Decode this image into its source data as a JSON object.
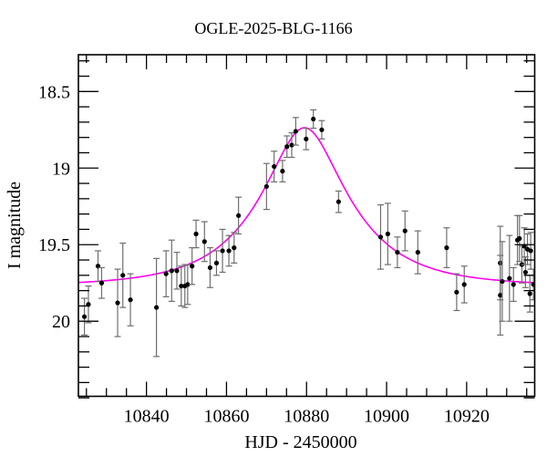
{
  "figure": {
    "title": "OGLE-2025-BLG-1166",
    "xlabel": "HJD - 2450000",
    "ylabel": "I magnitude"
  },
  "chart_data": {
    "type": "scatter",
    "title": "OGLE-2025-BLG-1166",
    "xlabel": "HJD - 2450000",
    "ylabel": "I magnitude",
    "xlim": [
      10823,
      10937
    ],
    "ylim": [
      18.26,
      20.49
    ],
    "y_axis_inverted": true,
    "grid": false,
    "legend": null,
    "x_major_ticks": [
      10840,
      10860,
      10880,
      10900,
      10920
    ],
    "x_minor_step": 5,
    "y_major_ticks": [
      18.5,
      19,
      19.5,
      20
    ],
    "y_minor_step": 0.1,
    "colors": {
      "points": "#000000",
      "error_bars": "#6e6e6e",
      "model_curve": "#ff00f0",
      "axis": "#000000",
      "background": "#ffffff"
    },
    "points_format": [
      "hjd_minus_2450000",
      "i_magnitude",
      "mag_error"
    ],
    "points": [
      [
        10824.5,
        19.97,
        0.12
      ],
      [
        10825.5,
        19.89,
        0.12
      ],
      [
        10827.9,
        19.64,
        0.1
      ],
      [
        10828.8,
        19.75,
        0.1
      ],
      [
        10832.8,
        19.88,
        0.22
      ],
      [
        10834.1,
        19.7,
        0.21
      ],
      [
        10836.0,
        19.86,
        0.17
      ],
      [
        10842.5,
        19.91,
        0.32
      ],
      [
        10844.9,
        19.69,
        0.15
      ],
      [
        10846.3,
        19.67,
        0.2
      ],
      [
        10847.6,
        19.67,
        0.12
      ],
      [
        10848.7,
        19.77,
        0.13
      ],
      [
        10849.6,
        19.77,
        0.14
      ],
      [
        10850.3,
        19.76,
        0.13
      ],
      [
        10851.4,
        19.64,
        0.12
      ],
      [
        10852.4,
        19.43,
        0.09
      ],
      [
        10854.5,
        19.48,
        0.13
      ],
      [
        10855.9,
        19.65,
        0.13
      ],
      [
        10857.5,
        19.62,
        0.08
      ],
      [
        10859.0,
        19.54,
        0.14
      ],
      [
        10860.6,
        19.54,
        0.1
      ],
      [
        10861.9,
        19.52,
        0.1
      ],
      [
        10863.0,
        19.31,
        0.12
      ],
      [
        10870.0,
        19.12,
        0.15
      ],
      [
        10871.9,
        18.99,
        0.1
      ],
      [
        10874.0,
        19.02,
        0.07
      ],
      [
        10875.1,
        18.86,
        0.07
      ],
      [
        10876.3,
        18.85,
        0.08
      ],
      [
        10877.3,
        18.76,
        0.09
      ],
      [
        10879.9,
        18.81,
        0.07
      ],
      [
        10881.7,
        18.68,
        0.06
      ],
      [
        10883.8,
        18.75,
        0.06
      ],
      [
        10888.0,
        19.22,
        0.07
      ],
      [
        10898.5,
        19.45,
        0.21
      ],
      [
        10900.3,
        19.43,
        0.2
      ],
      [
        10902.7,
        19.55,
        0.1
      ],
      [
        10904.6,
        19.41,
        0.13
      ],
      [
        10907.8,
        19.55,
        0.14
      ],
      [
        10915.0,
        19.52,
        0.13
      ],
      [
        10917.5,
        19.81,
        0.12
      ],
      [
        10919.4,
        19.76,
        0.12
      ],
      [
        10928.4,
        19.62,
        0.24
      ],
      [
        10928.4,
        19.83,
        0.26
      ],
      [
        10928.9,
        19.74,
        0.26
      ],
      [
        10930.7,
        19.72,
        0.28
      ],
      [
        10931.7,
        19.76,
        0.11
      ],
      [
        10932.7,
        19.47,
        0.16
      ],
      [
        10933.2,
        19.46,
        0.15
      ],
      [
        10933.8,
        19.63,
        0.12
      ],
      [
        10934.4,
        19.51,
        0.12
      ],
      [
        10934.7,
        19.68,
        0.1
      ],
      [
        10935.2,
        19.53,
        0.1
      ],
      [
        10935.8,
        19.82,
        0.12
      ],
      [
        10936.0,
        19.54,
        0.12
      ],
      [
        10936.7,
        19.76,
        0.1
      ]
    ],
    "model_curve": {
      "type": "paczynski_microlensing",
      "t0": 10879.5,
      "tE": 20.5,
      "u0": 0.41,
      "baseline_mag": 19.77,
      "peak_mag": 18.74
    }
  }
}
